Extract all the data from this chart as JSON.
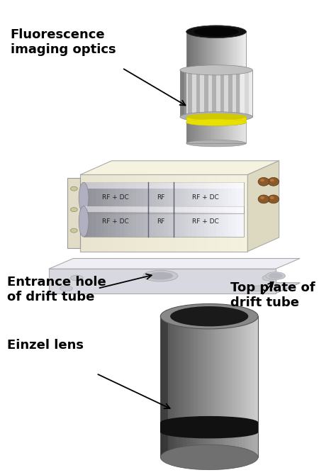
{
  "bg_color": "#ffffff",
  "labels": {
    "fluorescence": "Fluorescence\nimaging optics",
    "entrance": "Entrance hole\nof drift tube",
    "top_plate": "Top plate of\ndrift tube",
    "einzel": "Einzel lens"
  },
  "colors": {
    "lens_body": "#c8c8c8",
    "lens_mid": "#b0b0b0",
    "lens_dark": "#808080",
    "lens_light": "#e8e8e8",
    "lens_yellow": "#e8e000",
    "lens_black_top": "#111111",
    "trap_cream": "#f0eddc",
    "trap_top": "#f5f2e2",
    "trap_side": "#e0dcc8",
    "trap_base": "#dcdce8",
    "trap_base_top": "#e8e8f0",
    "rod_body": "#d8d8e0",
    "rod_light": "#f5f5f8",
    "rod_dark": "#909098",
    "connector": "#8b5a2b",
    "einzel_body": "#8a8a8a",
    "einzel_light": "#c0c0c0",
    "einzel_dark": "#404040",
    "einzel_band": "#1a1a1a",
    "arrow_color": "#000000",
    "label_color": "#000000"
  }
}
